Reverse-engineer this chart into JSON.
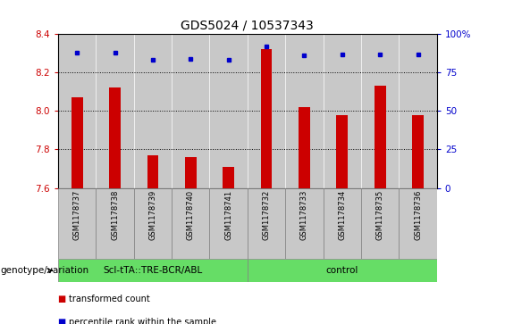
{
  "title": "GDS5024 / 10537343",
  "samples": [
    "GSM1178737",
    "GSM1178738",
    "GSM1178739",
    "GSM1178740",
    "GSM1178741",
    "GSM1178732",
    "GSM1178733",
    "GSM1178734",
    "GSM1178735",
    "GSM1178736"
  ],
  "transformed_counts": [
    8.07,
    8.12,
    7.77,
    7.76,
    7.71,
    8.32,
    8.02,
    7.98,
    8.13,
    7.98
  ],
  "percentile_ranks": [
    88,
    88,
    83,
    84,
    83,
    92,
    86,
    87,
    87,
    87
  ],
  "bar_color": "#cc0000",
  "dot_color": "#0000cc",
  "ylim_left": [
    7.6,
    8.4
  ],
  "ylim_right": [
    0,
    100
  ],
  "yticks_left": [
    7.6,
    7.8,
    8.0,
    8.2,
    8.4
  ],
  "yticks_right": [
    0,
    25,
    50,
    75,
    100
  ],
  "grid_values": [
    7.8,
    8.0,
    8.2
  ],
  "group1_label": "ScI-tTA::TRE-BCR/ABL",
  "group2_label": "control",
  "group1_count": 5,
  "group2_count": 5,
  "group_color": "#66dd66",
  "bar_bg_color": "#c8c8c8",
  "legend_red_label": "transformed count",
  "legend_blue_label": "percentile rank within the sample",
  "genotype_label": "genotype/variation",
  "title_fontsize": 10,
  "tick_fontsize": 7.5,
  "sample_fontsize": 6,
  "group_fontsize": 7.5,
  "legend_fontsize": 7
}
